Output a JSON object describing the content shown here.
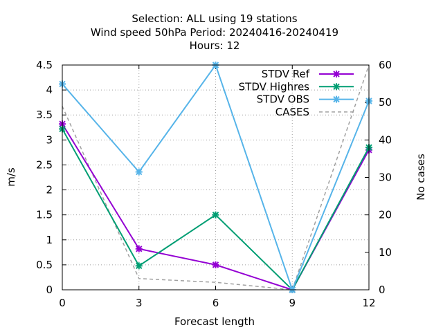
{
  "chart_data": {
    "type": "line",
    "title_lines": [
      "Selection: ALL using    19 stations",
      "Wind speed 50hPa   Period: 20240416-20240419",
      "Hours:  12"
    ],
    "xlabel": "Forecast length",
    "ylabel": "m/s",
    "y2label": "No cases",
    "x": [
      0,
      3,
      6,
      9,
      12
    ],
    "xlim": [
      0,
      12
    ],
    "ylim": [
      0,
      4.5
    ],
    "y2lim": [
      0,
      60
    ],
    "x_ticks": [
      "0",
      "3",
      "6",
      "9",
      "12"
    ],
    "y_ticks": [
      "0",
      "0.5",
      "1",
      "1.5",
      "2",
      "2.5",
      "3",
      "3.5",
      "4",
      "4.5"
    ],
    "y2_ticks": [
      "0",
      "10",
      "20",
      "30",
      "40",
      "50",
      "60"
    ],
    "grid": true,
    "legend_position": "top-right",
    "series": [
      {
        "name": "STDV Ref",
        "axis": "left",
        "color": "#9400d3",
        "style": "solid-marker",
        "values": [
          3.32,
          0.82,
          0.5,
          0.0,
          2.8
        ]
      },
      {
        "name": "STDV Highres",
        "axis": "left",
        "color": "#009e73",
        "style": "solid-marker",
        "values": [
          3.22,
          0.48,
          1.5,
          0.0,
          2.85
        ]
      },
      {
        "name": "STDV OBS",
        "axis": "left",
        "color": "#56b4e9",
        "style": "solid-marker",
        "values": [
          4.12,
          2.36,
          4.5,
          0.0,
          3.78
        ]
      },
      {
        "name": "CASES",
        "axis": "right",
        "color": "#a0a0a0",
        "style": "dashed",
        "values": [
          49,
          3,
          2,
          0,
          60
        ]
      }
    ]
  }
}
